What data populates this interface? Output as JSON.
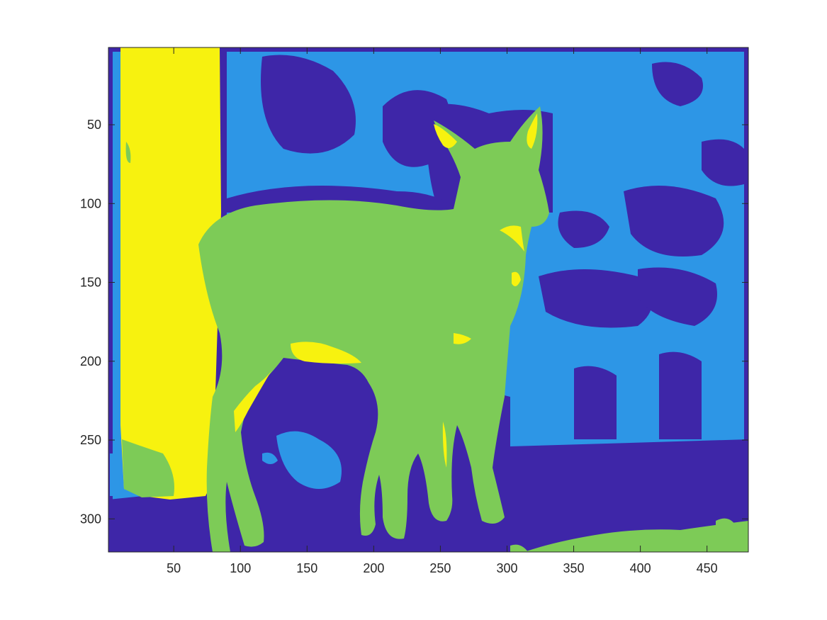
{
  "colors": {
    "class_1": "#3e26a8",
    "class_2": "#2d96e6",
    "class_3": "#7dcb57",
    "class_4": "#f7f20f",
    "axis": "#262626",
    "background": "#ffffff"
  },
  "axes": {
    "x_ticks": [
      "50",
      "100",
      "150",
      "200",
      "250",
      "300",
      "350",
      "400",
      "450"
    ],
    "y_ticks": [
      "50",
      "100",
      "150",
      "200",
      "250",
      "300"
    ],
    "x_range": [
      1,
      481
    ],
    "y_range": [
      1,
      321
    ],
    "y_direction": "reversed"
  },
  "image": {
    "subject": "segmentation label map of a deer",
    "classes": 4
  }
}
